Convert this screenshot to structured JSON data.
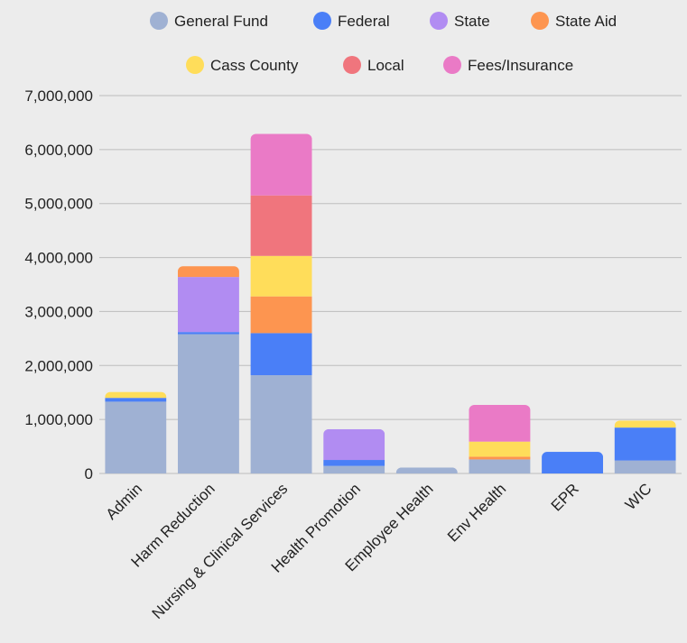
{
  "chart_data": {
    "type": "bar",
    "stacked": true,
    "title": "",
    "xlabel": "",
    "ylabel": "",
    "ylim": [
      0,
      7000000
    ],
    "yticks": [
      0,
      1000000,
      2000000,
      3000000,
      4000000,
      5000000,
      6000000,
      7000000
    ],
    "ytick_labels": [
      "0",
      "1,000,000",
      "2,000,000",
      "3,000,000",
      "4,000,000",
      "5,000,000",
      "6,000,000",
      "7,000,000"
    ],
    "grid": true,
    "legend_position": "top",
    "categories": [
      "Admin",
      "Harm Reduction",
      "Nursing & Clinical Services",
      "Health Promotion",
      "Employee Health",
      "Env Health",
      "EPR",
      "WIC"
    ],
    "series": [
      {
        "name": "General Fund",
        "color": "#9fb1d3",
        "values": [
          1330000,
          2580000,
          1820000,
          140000,
          110000,
          260000,
          0,
          240000
        ]
      },
      {
        "name": "Federal",
        "color": "#4a7ff7",
        "values": [
          70000,
          40000,
          780000,
          110000,
          0,
          0,
          400000,
          610000
        ]
      },
      {
        "name": "State",
        "color": "#b18cf2",
        "values": [
          0,
          1020000,
          0,
          570000,
          0,
          0,
          0,
          0
        ]
      },
      {
        "name": "State Aid",
        "color": "#fd9550",
        "values": [
          0,
          200000,
          680000,
          0,
          0,
          50000,
          0,
          0
        ]
      },
      {
        "name": "Cass County",
        "color": "#ffdd5a",
        "values": [
          110000,
          0,
          750000,
          0,
          0,
          280000,
          0,
          130000
        ]
      },
      {
        "name": "Local",
        "color": "#f0757d",
        "values": [
          0,
          0,
          1120000,
          0,
          0,
          0,
          0,
          0
        ]
      },
      {
        "name": "Fees/Insurance",
        "color": "#ea7ac6",
        "values": [
          0,
          0,
          1140000,
          0,
          0,
          680000,
          0,
          0
        ]
      }
    ]
  }
}
